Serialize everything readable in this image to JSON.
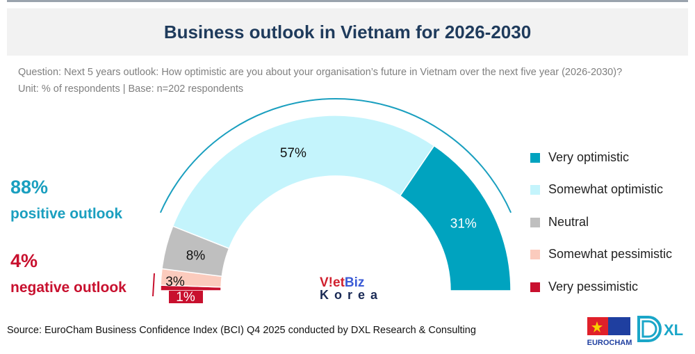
{
  "title": "Business outlook in Vietnam for 2026-2030",
  "question": "Question: Next 5 years outlook: How optimistic are you about your organisation’s future in Vietnam over the next five year (2026-2030)?",
  "unit": "Unit: % of respondents | Base: n=202 respondents",
  "positive": {
    "value": "88%",
    "label": "positive outlook",
    "color": "#1a9fbf"
  },
  "negative": {
    "value": "4%",
    "label": "negative outlook",
    "color": "#c8102e"
  },
  "source": "Source: EuroCham Business Confidence Index (BCI) Q4 2025 conducted by DXL Research & Consulting",
  "watermark": {
    "line1a": "V!et",
    "line1b": "Biz",
    "line2": "Korea"
  },
  "logos": {
    "eurocham": "EUROCHAM",
    "dxl": "DXL"
  },
  "chart_data": {
    "type": "pie",
    "variant": "half-donut gauge",
    "unit": "%",
    "categories": [
      "Very pessimistic",
      "Somewhat pessimistic",
      "Neutral",
      "Somewhat optimistic",
      "Very optimistic"
    ],
    "values": [
      1,
      3,
      8,
      57,
      31
    ],
    "data_labels": [
      "1%",
      "3%",
      "8%",
      "57%",
      "31%"
    ],
    "colors": [
      "#c8102e",
      "#fbcbbd",
      "#bfbfbf",
      "#c4f4fc",
      "#00a3bf"
    ],
    "legend": [
      "Very optimistic",
      "Somewhat optimistic",
      "Neutral",
      "Somewhat pessimistic",
      "Very pessimistic"
    ],
    "legend_colors": [
      "#00a3bf",
      "#c4f4fc",
      "#bfbfbf",
      "#fbcbbd",
      "#c8102e"
    ],
    "legend_position": "right"
  }
}
